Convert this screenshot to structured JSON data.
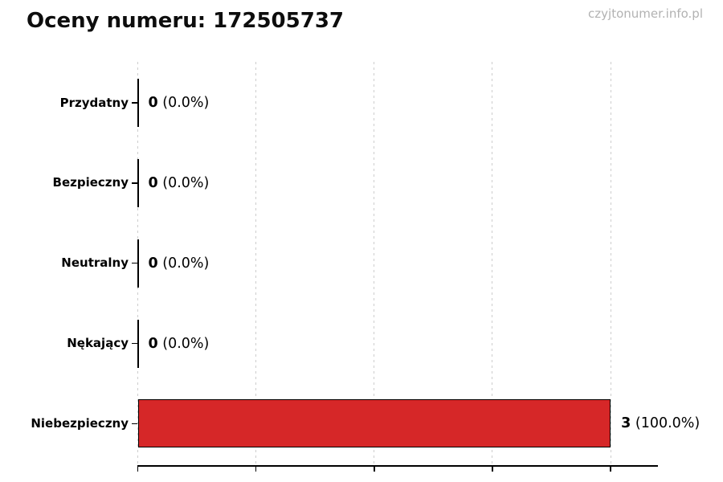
{
  "title": "Oceny numeru: 172505737",
  "watermark": "czyjtonumer.info.pl",
  "chart_data": {
    "type": "bar",
    "orientation": "horizontal",
    "title": "Oceny numeru: 172505737",
    "xlabel": "",
    "ylabel": "",
    "categories": [
      "Przydatny",
      "Bezpieczny",
      "Neutralny",
      "Nękający",
      "Niebezpieczny"
    ],
    "values": [
      0,
      0,
      0,
      0,
      3
    ],
    "percent_labels": [
      "0.0%",
      "0.0%",
      "0.0%",
      "0.0%",
      "100.0%"
    ],
    "value_label_format": "count (percent)",
    "xlim": [
      0,
      3.3
    ],
    "xticks": [
      0,
      0.75,
      1.5,
      2.25,
      3
    ],
    "xtick_labels_visible": false,
    "grid": "vertical-dashed",
    "grid_color": "#cdcdcd",
    "bar_color": "#d62728",
    "bar_edge_color": "#000000",
    "zero_value_style": "black-edge-line",
    "legend_position": "none"
  }
}
